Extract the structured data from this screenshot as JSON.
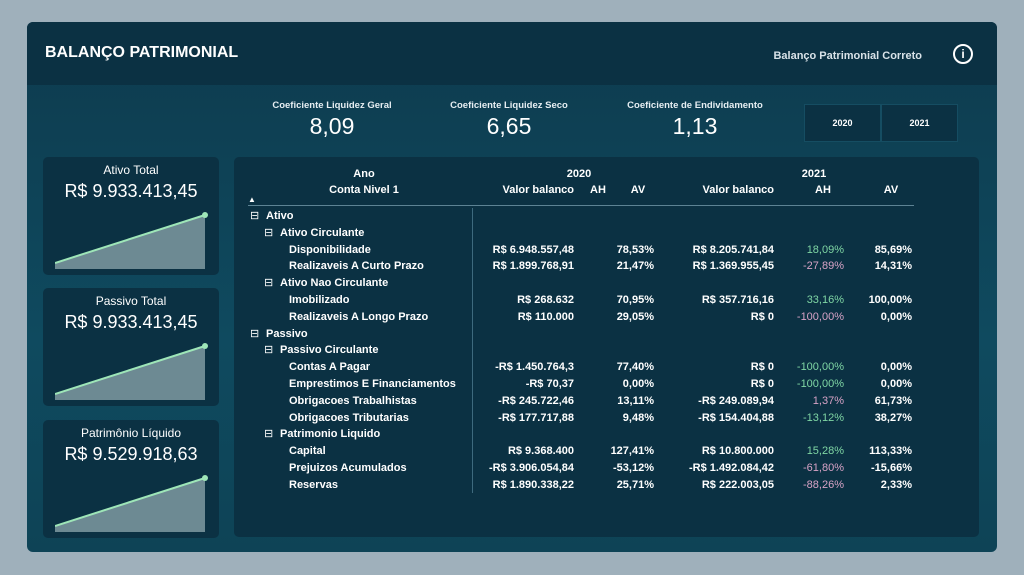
{
  "header": {
    "title": "BALANÇO PATRIMONIAL",
    "subtitle": "Balanço Patrimonial Correto",
    "info_icon": "i"
  },
  "kpis": [
    {
      "label": "Coeficiente Liquidez Geral",
      "value": "8,09"
    },
    {
      "label": "Coeficiente Liquidez Seco",
      "value": "6,65"
    },
    {
      "label": "Coeficiente de Endividamento",
      "value": "1,13"
    }
  ],
  "year_slicer": [
    "2020",
    "2021"
  ],
  "cards": [
    {
      "label": "Ativo Total",
      "value": "R$ 9.933.413,45"
    },
    {
      "label": "Passivo Total",
      "value": "R$ 9.933.413,45"
    },
    {
      "label": "Patrimônio Líquido",
      "value": "R$ 9.529.918,63"
    }
  ],
  "colors": {
    "positive": "#7fd6a4",
    "negative": "#d7a3c6",
    "accent_line": "#9ee6b8"
  },
  "table": {
    "header": {
      "row1": "Ano",
      "row2": "Conta Nivel 1",
      "years": [
        "2020",
        "2021"
      ],
      "cols": [
        "Valor balanco",
        "AH",
        "AV"
      ]
    },
    "rows": [
      {
        "level": 0,
        "label": "Ativo",
        "expand": "⊟"
      },
      {
        "level": 1,
        "label": "Ativo Circulante",
        "expand": "⊟"
      },
      {
        "level": 2,
        "label": "Disponibilidade",
        "v20": "R$ 6.948.557,48",
        "ah20": "",
        "av20": "78,53%",
        "v21": "R$ 8.205.741,84",
        "ah21": "18,09%",
        "ah21c": "g",
        "av21": "85,69%"
      },
      {
        "level": 2,
        "label": "Realizaveis A Curto Prazo",
        "v20": "R$ 1.899.768,91",
        "ah20": "",
        "av20": "21,47%",
        "v21": "R$ 1.369.955,45",
        "ah21": "-27,89%",
        "ah21c": "p",
        "av21": "14,31%"
      },
      {
        "level": 1,
        "label": "Ativo Nao Circulante",
        "expand": "⊟"
      },
      {
        "level": 2,
        "label": "Imobilizado",
        "v20": "R$ 268.632",
        "ah20": "",
        "av20": "70,95%",
        "v21": "R$ 357.716,16",
        "ah21": "33,16%",
        "ah21c": "g",
        "av21": "100,00%"
      },
      {
        "level": 2,
        "label": "Realizaveis A Longo Prazo",
        "v20": "R$ 110.000",
        "ah20": "",
        "av20": "29,05%",
        "v21": "R$ 0",
        "ah21": "-100,00%",
        "ah21c": "p",
        "av21": "0,00%"
      },
      {
        "level": 0,
        "label": "Passivo",
        "expand": "⊟"
      },
      {
        "level": 1,
        "label": "Passivo Circulante",
        "expand": "⊟"
      },
      {
        "level": 2,
        "label": "Contas A Pagar",
        "v20": "-R$ 1.450.764,3",
        "ah20": "",
        "av20": "77,40%",
        "v21": "R$ 0",
        "ah21": "-100,00%",
        "ah21c": "g",
        "av21": "0,00%"
      },
      {
        "level": 2,
        "label": "Emprestimos E Financiamentos",
        "v20": "-R$ 70,37",
        "ah20": "",
        "av20": "0,00%",
        "v21": "R$ 0",
        "ah21": "-100,00%",
        "ah21c": "g",
        "av21": "0,00%"
      },
      {
        "level": 2,
        "label": "Obrigacoes Trabalhistas",
        "v20": "-R$ 245.722,46",
        "ah20": "",
        "av20": "13,11%",
        "v21": "-R$ 249.089,94",
        "ah21": "1,37%",
        "ah21c": "p",
        "av21": "61,73%"
      },
      {
        "level": 2,
        "label": "Obrigacoes Tributarias",
        "v20": "-R$ 177.717,88",
        "ah20": "",
        "av20": "9,48%",
        "v21": "-R$ 154.404,88",
        "ah21": "-13,12%",
        "ah21c": "g",
        "av21": "38,27%"
      },
      {
        "level": 1,
        "label": "Patrimonio Liquido",
        "expand": "⊟"
      },
      {
        "level": 2,
        "label": "Capital",
        "v20": "R$ 9.368.400",
        "ah20": "",
        "av20": "127,41%",
        "v21": "R$ 10.800.000",
        "ah21": "15,28%",
        "ah21c": "g",
        "av21": "113,33%"
      },
      {
        "level": 2,
        "label": "Prejuizos Acumulados",
        "v20": "-R$ 3.906.054,84",
        "ah20": "",
        "av20": "-53,12%",
        "v21": "-R$ 1.492.084,42",
        "ah21": "-61,80%",
        "ah21c": "p",
        "av21": "-15,66%"
      },
      {
        "level": 2,
        "label": "Reservas",
        "v20": "R$ 1.890.338,22",
        "ah20": "",
        "av20": "25,71%",
        "v21": "R$ 222.003,05",
        "ah21": "-88,26%",
        "ah21c": "p",
        "av21": "2,33%"
      }
    ]
  }
}
